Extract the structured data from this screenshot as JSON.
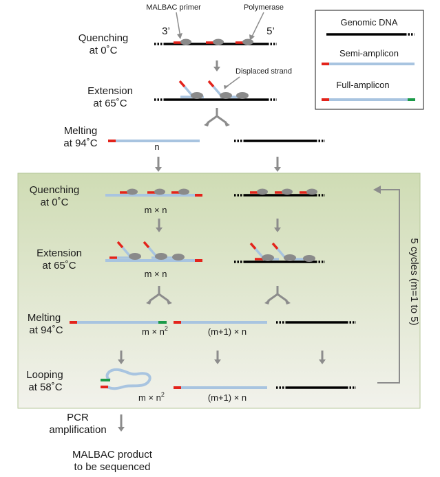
{
  "colors": {
    "genomic": "#000000",
    "amplicon": "#a8c4e0",
    "primer": "#e3231b",
    "tail": "#1b9a48",
    "polymerase": "#8a8a8a",
    "arrow": "#8c8c8c",
    "panel_top": "#cfdcb4",
    "panel_bottom": "#f2f2ec",
    "panel_border": "#b6c79a"
  },
  "legend": {
    "genomic": "Genomic DNA",
    "semi": "Semi-amplicon",
    "full": "Full-amplicon"
  },
  "annotations": {
    "primer": "MALBAC primer",
    "polymerase": "Polymerase",
    "displaced": "Displaced strand",
    "end3": "3’",
    "end5": "5’"
  },
  "steps": {
    "quench1_a": "Quenching",
    "quench1_b": "at 0˚C",
    "ext1_a": "Extension",
    "ext1_b": "at 65˚C",
    "melt1_a": "Melting",
    "melt1_b": "at 94˚C",
    "quench2_a": "Quenching",
    "quench2_b": "at 0˚C",
    "ext2_a": "Extension",
    "ext2_b": "at 65˚C",
    "melt2_a": "Melting",
    "melt2_b": "at 94˚C",
    "loop_a": "Looping",
    "loop_b": "at 58˚C",
    "pcr_a": "PCR",
    "pcr_b": "amplification",
    "product_a": "MALBAC product",
    "product_b": "to be sequenced"
  },
  "multiplicities": {
    "n": "n",
    "mn1": "m × n",
    "mn2": "m × n",
    "mn_sq_base": "m × n",
    "sq": "2",
    "m1n": "(m+1) × n",
    "mn_sq2_base": "m × n",
    "sq2": "2",
    "m1n2": "(m+1) × n"
  },
  "cycles": "5 cycles (m=1 to 5)"
}
